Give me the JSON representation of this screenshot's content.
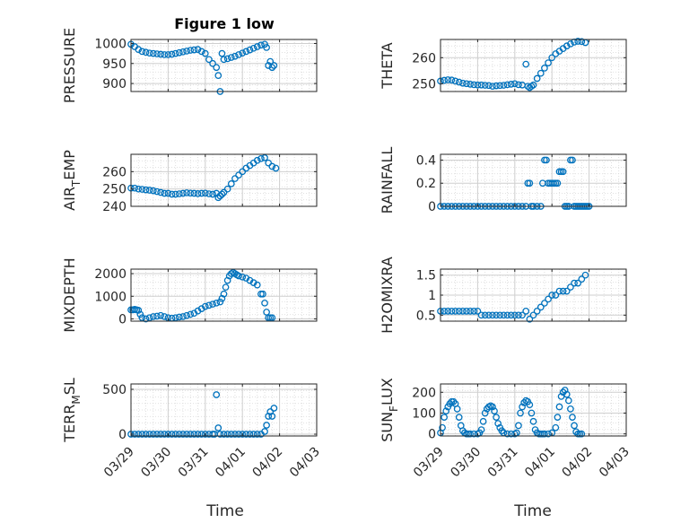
{
  "figure": {
    "title": "Figure 1 low",
    "x_axis_label": "Time",
    "x_tick_labels": [
      "03/29",
      "03/30",
      "03/31",
      "04/01",
      "04/02",
      "04/03"
    ]
  },
  "chart_data": [
    {
      "type": "scatter",
      "panel": "PRESSURE",
      "title": "Figure 1 low",
      "ylabel": "PRESSURE",
      "ylabel_sub": "",
      "ylabel_tail": "",
      "xlabel": "",
      "xlim": [
        0,
        5
      ],
      "ylim": [
        880,
        1010
      ],
      "yticks": [
        900,
        950,
        1000
      ],
      "grid": true,
      "marker_color": "#0072BD",
      "x_tick_labels_visible": false,
      "x": [
        0.0,
        0.1,
        0.2,
        0.3,
        0.4,
        0.5,
        0.6,
        0.7,
        0.8,
        0.9,
        1.0,
        1.1,
        1.2,
        1.3,
        1.4,
        1.5,
        1.6,
        1.7,
        1.8,
        1.9,
        2.0,
        2.1,
        2.2,
        2.3,
        2.35,
        2.4,
        2.45,
        2.5,
        2.6,
        2.7,
        2.8,
        2.9,
        3.0,
        3.1,
        3.2,
        3.3,
        3.4,
        3.5,
        3.6,
        3.65,
        3.7,
        3.75,
        3.8,
        3.85
      ],
      "y": [
        998,
        992,
        985,
        980,
        978,
        976,
        975,
        974,
        973,
        972,
        972,
        973,
        975,
        977,
        979,
        981,
        983,
        984,
        985,
        980,
        975,
        960,
        950,
        940,
        920,
        880,
        975,
        960,
        962,
        965,
        968,
        972,
        976,
        980,
        984,
        988,
        992,
        996,
        998,
        990,
        945,
        955,
        940,
        945
      ]
    },
    {
      "type": "scatter",
      "panel": "THETA",
      "title": "",
      "ylabel": "THETA",
      "ylabel_sub": "",
      "ylabel_tail": "",
      "xlabel": "",
      "xlim": [
        0,
        5
      ],
      "ylim": [
        247,
        267
      ],
      "yticks": [
        250,
        260
      ],
      "grid": true,
      "marker_color": "#0072BD",
      "x_tick_labels_visible": false,
      "x": [
        0.0,
        0.1,
        0.2,
        0.3,
        0.4,
        0.5,
        0.6,
        0.7,
        0.8,
        0.9,
        1.0,
        1.1,
        1.2,
        1.3,
        1.4,
        1.5,
        1.6,
        1.7,
        1.8,
        1.9,
        2.0,
        2.1,
        2.2,
        2.3,
        2.35,
        2.4,
        2.45,
        2.5,
        2.6,
        2.7,
        2.8,
        2.9,
        3.0,
        3.1,
        3.2,
        3.3,
        3.4,
        3.5,
        3.6,
        3.7,
        3.8,
        3.9
      ],
      "y": [
        251,
        251.3,
        251.5,
        251.4,
        251,
        250.6,
        250.2,
        250,
        249.8,
        249.6,
        249.5,
        249.5,
        249.4,
        249.3,
        249,
        249.2,
        249.3,
        249.4,
        249.6,
        249.8,
        250,
        249.6,
        249.5,
        257.5,
        249,
        248.5,
        249,
        249.5,
        252,
        254,
        256,
        258,
        260,
        261.5,
        262.5,
        263.5,
        264.5,
        265.3,
        266,
        266.3,
        266.2,
        265.8
      ]
    },
    {
      "type": "scatter",
      "panel": "AIR_TEMP",
      "title": "",
      "ylabel": "AIR",
      "ylabel_sub": "T",
      "ylabel_tail": "EMP",
      "xlabel": "",
      "xlim": [
        0,
        5
      ],
      "ylim": [
        240,
        270
      ],
      "yticks": [
        240,
        250,
        260
      ],
      "grid": true,
      "marker_color": "#0072BD",
      "x_tick_labels_visible": false,
      "x": [
        0.0,
        0.1,
        0.2,
        0.3,
        0.4,
        0.5,
        0.6,
        0.7,
        0.8,
        0.9,
        1.0,
        1.1,
        1.2,
        1.3,
        1.4,
        1.5,
        1.6,
        1.7,
        1.8,
        1.9,
        2.0,
        2.1,
        2.2,
        2.3,
        2.35,
        2.4,
        2.45,
        2.5,
        2.6,
        2.7,
        2.8,
        2.9,
        3.0,
        3.1,
        3.2,
        3.3,
        3.4,
        3.5,
        3.6,
        3.7,
        3.8,
        3.9
      ],
      "y": [
        250.5,
        250.5,
        250,
        249.8,
        249.5,
        249.3,
        249,
        248.5,
        248,
        247.5,
        247.5,
        247,
        247,
        247.2,
        247.5,
        247.8,
        247.6,
        247.5,
        247.3,
        247.5,
        247.6,
        247.2,
        247,
        247.5,
        245,
        246,
        247,
        248,
        250,
        253,
        256,
        258,
        260,
        262,
        263.5,
        265,
        266.5,
        267.5,
        268,
        265,
        263,
        262
      ]
    },
    {
      "type": "scatter",
      "panel": "RAINFALL",
      "title": "",
      "ylabel": "RAINFALL",
      "ylabel_sub": "",
      "ylabel_tail": "",
      "xlabel": "",
      "xlim": [
        0,
        5
      ],
      "ylim": [
        0,
        0.45
      ],
      "yticks": [
        0,
        0.2,
        0.4
      ],
      "grid": true,
      "marker_color": "#0072BD",
      "x_tick_labels_visible": false,
      "x": [
        0.0,
        0.1,
        0.2,
        0.3,
        0.4,
        0.5,
        0.6,
        0.7,
        0.8,
        0.9,
        1.0,
        1.1,
        1.2,
        1.3,
        1.4,
        1.5,
        1.6,
        1.7,
        1.8,
        1.9,
        2.0,
        2.1,
        2.2,
        2.3,
        2.35,
        2.4,
        2.45,
        2.5,
        2.6,
        2.7,
        2.75,
        2.8,
        2.85,
        2.9,
        2.95,
        3.0,
        3.05,
        3.1,
        3.15,
        3.2,
        3.25,
        3.3,
        3.35,
        3.4,
        3.45,
        3.5,
        3.55,
        3.6,
        3.65,
        3.7,
        3.75,
        3.8,
        3.85,
        3.9,
        3.95,
        4.0
      ],
      "y": [
        0,
        0,
        0,
        0,
        0,
        0,
        0,
        0,
        0,
        0,
        0,
        0,
        0,
        0,
        0,
        0,
        0,
        0,
        0,
        0,
        0,
        0,
        0,
        0,
        0.2,
        0.2,
        0,
        0,
        0,
        0,
        0.2,
        0.4,
        0.4,
        0.2,
        0.2,
        0.2,
        0.2,
        0.2,
        0.2,
        0.3,
        0.3,
        0.3,
        0,
        0,
        0,
        0.4,
        0.4,
        0,
        0,
        0,
        0,
        0,
        0,
        0,
        0,
        0
      ]
    },
    {
      "type": "scatter",
      "panel": "MIXDEPTH",
      "title": "",
      "ylabel": "MIXDEPTH",
      "ylabel_sub": "",
      "ylabel_tail": "",
      "xlabel": "",
      "xlim": [
        0,
        5
      ],
      "ylim": [
        -100,
        2200
      ],
      "yticks": [
        0,
        1000,
        2000
      ],
      "grid": true,
      "marker_color": "#0072BD",
      "x_tick_labels_visible": false,
      "x": [
        0.0,
        0.05,
        0.1,
        0.15,
        0.2,
        0.25,
        0.3,
        0.4,
        0.5,
        0.6,
        0.7,
        0.8,
        0.9,
        1.0,
        1.1,
        1.2,
        1.3,
        1.4,
        1.5,
        1.6,
        1.7,
        1.8,
        1.9,
        2.0,
        2.1,
        2.2,
        2.3,
        2.4,
        2.45,
        2.5,
        2.55,
        2.6,
        2.65,
        2.7,
        2.75,
        2.8,
        2.85,
        2.9,
        3.0,
        3.1,
        3.2,
        3.3,
        3.4,
        3.5,
        3.55,
        3.6,
        3.65,
        3.7,
        3.75,
        3.8
      ],
      "y": [
        400,
        400,
        420,
        400,
        380,
        200,
        50,
        0,
        50,
        100,
        120,
        150,
        100,
        50,
        30,
        50,
        80,
        100,
        150,
        200,
        250,
        350,
        450,
        550,
        600,
        650,
        700,
        750,
        900,
        1100,
        1400,
        1700,
        1900,
        2000,
        2050,
        2000,
        1950,
        1900,
        1850,
        1800,
        1700,
        1600,
        1500,
        1100,
        1100,
        700,
        300,
        50,
        50,
        50
      ]
    },
    {
      "type": "scatter",
      "panel": "H2OMIXRA",
      "title": "",
      "ylabel": "H2OMIXRA",
      "ylabel_sub": "",
      "ylabel_tail": "",
      "xlabel": "",
      "xlim": [
        0,
        5
      ],
      "ylim": [
        0.35,
        1.65
      ],
      "yticks": [
        0.5,
        1,
        1.5
      ],
      "grid": true,
      "marker_color": "#0072BD",
      "x_tick_labels_visible": false,
      "x": [
        0.0,
        0.1,
        0.2,
        0.3,
        0.4,
        0.5,
        0.6,
        0.7,
        0.8,
        0.9,
        1.0,
        1.1,
        1.2,
        1.3,
        1.4,
        1.5,
        1.6,
        1.7,
        1.8,
        1.9,
        2.0,
        2.1,
        2.2,
        2.3,
        2.4,
        2.5,
        2.6,
        2.7,
        2.8,
        2.9,
        3.0,
        3.1,
        3.2,
        3.3,
        3.4,
        3.5,
        3.6,
        3.7,
        3.8,
        3.9
      ],
      "y": [
        0.6,
        0.6,
        0.6,
        0.6,
        0.6,
        0.6,
        0.6,
        0.6,
        0.6,
        0.6,
        0.6,
        0.5,
        0.5,
        0.5,
        0.5,
        0.5,
        0.5,
        0.5,
        0.5,
        0.5,
        0.5,
        0.5,
        0.5,
        0.6,
        0.4,
        0.5,
        0.6,
        0.7,
        0.8,
        0.9,
        1.0,
        1.0,
        1.1,
        1.1,
        1.1,
        1.2,
        1.3,
        1.3,
        1.4,
        1.5
      ]
    },
    {
      "type": "scatter",
      "panel": "TERR_MSL",
      "title": "",
      "ylabel": "TERR",
      "ylabel_sub": "M",
      "ylabel_tail": "SL",
      "xlabel": "Time",
      "xlim": [
        0,
        5
      ],
      "ylim": [
        -20,
        560
      ],
      "yticks": [
        0,
        500
      ],
      "grid": true,
      "marker_color": "#0072BD",
      "x_tick_labels_visible": true,
      "x": [
        0.0,
        0.1,
        0.2,
        0.3,
        0.4,
        0.5,
        0.6,
        0.7,
        0.8,
        0.9,
        1.0,
        1.1,
        1.2,
        1.3,
        1.4,
        1.5,
        1.6,
        1.7,
        1.8,
        1.9,
        2.0,
        2.1,
        2.2,
        2.25,
        2.3,
        2.35,
        2.4,
        2.5,
        2.6,
        2.7,
        2.8,
        2.9,
        3.0,
        3.1,
        3.2,
        3.3,
        3.4,
        3.5,
        3.6,
        3.65,
        3.7,
        3.75,
        3.8,
        3.85
      ],
      "y": [
        0,
        0,
        0,
        0,
        0,
        0,
        0,
        0,
        0,
        0,
        0,
        0,
        0,
        0,
        0,
        0,
        0,
        0,
        0,
        0,
        0,
        0,
        0,
        0,
        440,
        70,
        0,
        0,
        0,
        0,
        0,
        0,
        0,
        0,
        0,
        0,
        0,
        0,
        30,
        100,
        200,
        250,
        200,
        290
      ]
    },
    {
      "type": "scatter",
      "panel": "SUN_FLUX",
      "title": "",
      "ylabel": "SUN",
      "ylabel_sub": "F",
      "ylabel_tail": "LUX",
      "xlabel": "Time",
      "xlim": [
        0,
        5
      ],
      "ylim": [
        -10,
        240
      ],
      "yticks": [
        0,
        100,
        200
      ],
      "grid": true,
      "marker_color": "#0072BD",
      "x_tick_labels_visible": true,
      "x": [
        0.0,
        0.05,
        0.1,
        0.15,
        0.2,
        0.25,
        0.3,
        0.35,
        0.4,
        0.45,
        0.5,
        0.55,
        0.6,
        0.65,
        0.7,
        0.75,
        0.8,
        0.9,
        1.0,
        1.05,
        1.1,
        1.15,
        1.2,
        1.25,
        1.3,
        1.35,
        1.4,
        1.45,
        1.5,
        1.55,
        1.6,
        1.65,
        1.7,
        1.8,
        1.9,
        2.0,
        2.05,
        2.1,
        2.15,
        2.2,
        2.25,
        2.3,
        2.35,
        2.4,
        2.45,
        2.5,
        2.55,
        2.6,
        2.65,
        2.7,
        2.75,
        2.8,
        2.9,
        3.0,
        3.1,
        3.15,
        3.2,
        3.25,
        3.3,
        3.35,
        3.4,
        3.45,
        3.5,
        3.55,
        3.6,
        3.65,
        3.7,
        3.75,
        3.8
      ],
      "y": [
        5,
        30,
        80,
        110,
        130,
        145,
        155,
        155,
        145,
        120,
        80,
        40,
        15,
        5,
        0,
        0,
        0,
        0,
        0,
        5,
        20,
        60,
        100,
        120,
        130,
        135,
        130,
        110,
        80,
        50,
        30,
        15,
        5,
        0,
        0,
        0,
        5,
        40,
        100,
        130,
        150,
        160,
        155,
        140,
        100,
        60,
        20,
        5,
        0,
        0,
        0,
        0,
        0,
        5,
        30,
        80,
        130,
        180,
        200,
        210,
        190,
        160,
        120,
        80,
        40,
        10,
        0,
        0,
        0
      ]
    }
  ]
}
